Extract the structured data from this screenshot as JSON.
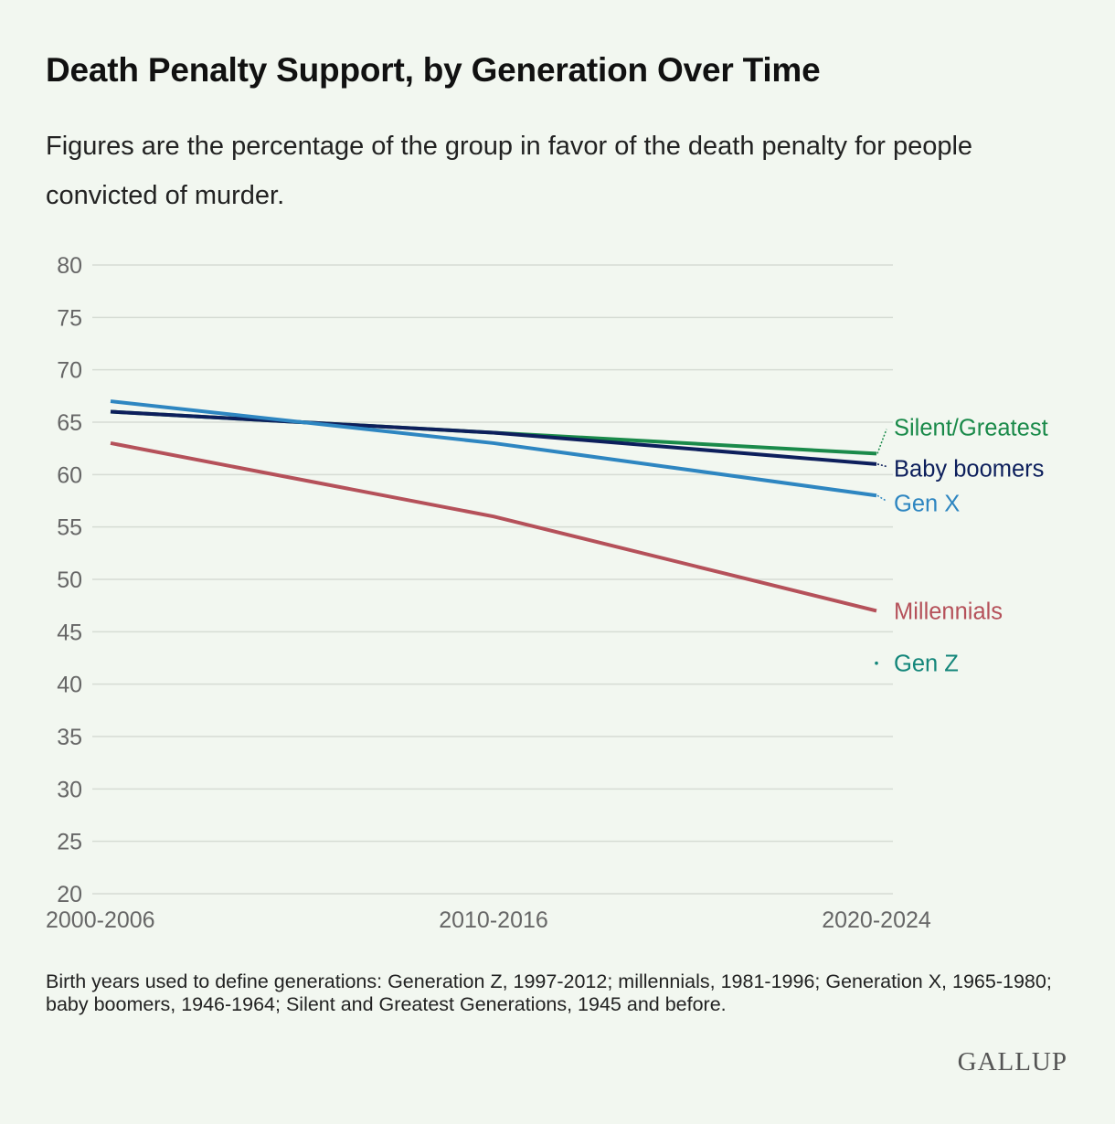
{
  "title": "Death Penalty Support, by Generation Over Time",
  "subtitle": "Figures are the percentage of the group in favor of the death penalty for people convicted of murder.",
  "footnote": "Birth years used to define generations: Generation Z, 1997-2012; millennials, 1981-1996; Generation X, 1965-1980; baby boomers, 1946-1964; Silent and Greatest Generations, 1945 and before.",
  "logo": "GALLUP",
  "chart_data": {
    "type": "line",
    "categories": [
      "2000-2006",
      "2010-2016",
      "2020-2024"
    ],
    "yticks": [
      20,
      25,
      30,
      35,
      40,
      45,
      50,
      55,
      60,
      65,
      70,
      75,
      80
    ],
    "ylim": [
      20,
      80
    ],
    "grid": true,
    "legend": "direct labels at right end of lines",
    "series": [
      {
        "name": "Silent/Greatest",
        "color": "#1a8a4a",
        "values": [
          66,
          64,
          62
        ]
      },
      {
        "name": "Baby boomers",
        "color": "#0d1f5c",
        "values": [
          66,
          64,
          61
        ]
      },
      {
        "name": "Gen X",
        "color": "#2e86c1",
        "values": [
          67,
          63,
          58
        ]
      },
      {
        "name": "Millennials",
        "color": "#b5515a",
        "values": [
          63,
          56,
          47
        ]
      },
      {
        "name": "Gen Z",
        "color": "#13867a",
        "values": [
          null,
          null,
          42
        ]
      }
    ]
  }
}
